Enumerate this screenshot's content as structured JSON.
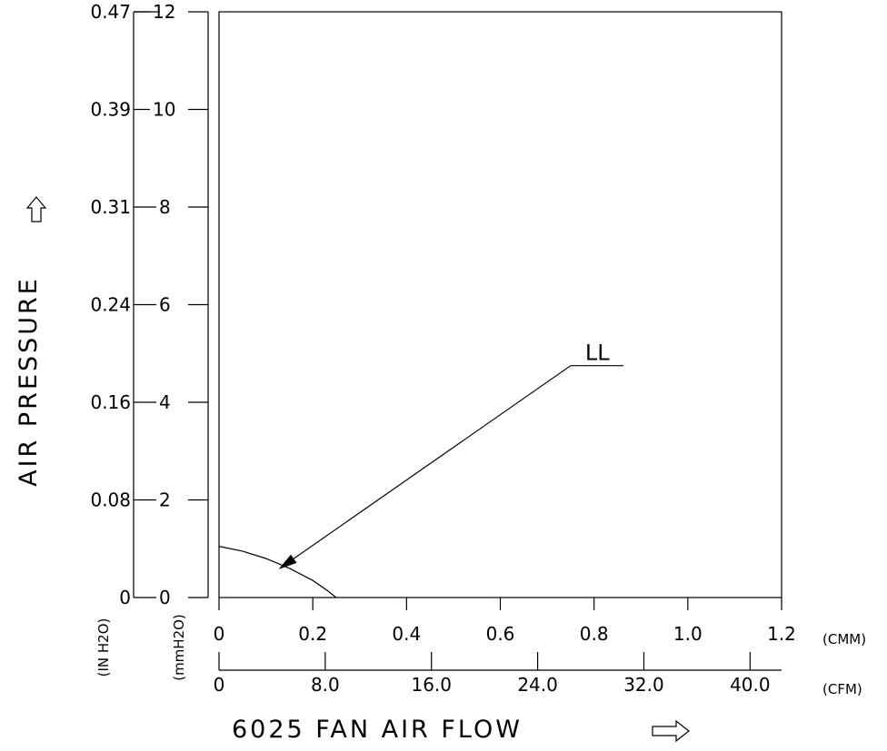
{
  "chart_data": {
    "type": "line",
    "title": "",
    "xlabel": "6025 FAN  AIR FLOW",
    "ylabel": "AIR PRESSURE",
    "xlim": [
      0,
      1.2
    ],
    "ylim": [
      0,
      12
    ],
    "x_axis_primary": {
      "unit": "(CMM)",
      "ticks": [
        0,
        0.2,
        0.4,
        0.6,
        0.8,
        1.0,
        1.2
      ],
      "tick_labels": [
        "0",
        "0.2",
        "0.4",
        "0.6",
        "0.8",
        "1.0",
        "1.2"
      ]
    },
    "x_axis_secondary": {
      "unit": "(CFM)",
      "ticks": [
        0,
        8.0,
        16.0,
        24.0,
        32.0,
        40.0
      ],
      "tick_labels": [
        "0",
        "8.0",
        "16.0",
        "24.0",
        "32.0",
        "40.0"
      ],
      "cmm_per_unit": 0.02832
    },
    "y_axis_mm": {
      "unit": "(mmH2O)",
      "ticks": [
        0,
        2,
        4,
        6,
        8,
        10,
        12
      ],
      "tick_labels": [
        "0",
        "2",
        "4",
        "6",
        "8",
        "10",
        "12"
      ]
    },
    "y_axis_in": {
      "unit": "(IN H2O)",
      "tick_labels": [
        "0",
        "0.08",
        "0.16",
        "0.24",
        "0.31",
        "0.39",
        "0.47"
      ]
    },
    "series": [
      {
        "name": "LL",
        "x": [
          0,
          0.05,
          0.1,
          0.15,
          0.2,
          0.23,
          0.25
        ],
        "y": [
          1.05,
          0.95,
          0.8,
          0.6,
          0.35,
          0.15,
          0
        ]
      }
    ],
    "annotation": {
      "text": "LL",
      "points_to": {
        "x": 0.13,
        "y": 0.6
      },
      "label_at": {
        "x": 0.75,
        "y": 4.75
      }
    },
    "grid": false,
    "legend": "none"
  },
  "icons": {
    "y_arrow": "up-outline-arrow-icon",
    "x_arrow": "right-outline-arrow-icon"
  }
}
